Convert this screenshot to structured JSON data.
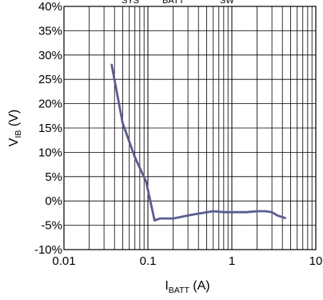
{
  "chart_data": {
    "type": "line",
    "title": "",
    "xlabel": {
      "main": "I",
      "sub": "BATT",
      "unit": " (A)"
    },
    "ylabel": {
      "main": "V",
      "sub": "IB",
      "unit": " (V)"
    },
    "header_fragments": [
      "SYS",
      "BATT",
      "SW"
    ],
    "x_scale": "log",
    "xlim": [
      0.01,
      10
    ],
    "ylim": [
      -10,
      40
    ],
    "x_ticks": [
      0.01,
      0.1,
      1,
      10
    ],
    "x_tick_labels": [
      "0.01",
      "0.1",
      "1",
      "10"
    ],
    "y_ticks": [
      -10,
      -5,
      0,
      5,
      10,
      15,
      20,
      25,
      30,
      35,
      40
    ],
    "y_tick_labels": [
      "-10%",
      "-5%",
      "0%",
      "5%",
      "10%",
      "15%",
      "20%",
      "25%",
      "30%",
      "35%",
      "40%"
    ],
    "grid": true,
    "series": [
      {
        "color": "#5a5d8f",
        "x": [
          0.037,
          0.05,
          0.07,
          0.095,
          0.12,
          0.14,
          0.2,
          0.3,
          0.4,
          0.6,
          0.8,
          1.0,
          1.5,
          2.0,
          2.5,
          3.0,
          3.5,
          4.3
        ],
        "y": [
          28,
          16,
          9,
          4,
          -4,
          -3.6,
          -3.6,
          -3,
          -2.6,
          -2.1,
          -2.3,
          -2.3,
          -2.3,
          -2.1,
          -2.1,
          -2.3,
          -3,
          -3.5
        ]
      }
    ]
  }
}
